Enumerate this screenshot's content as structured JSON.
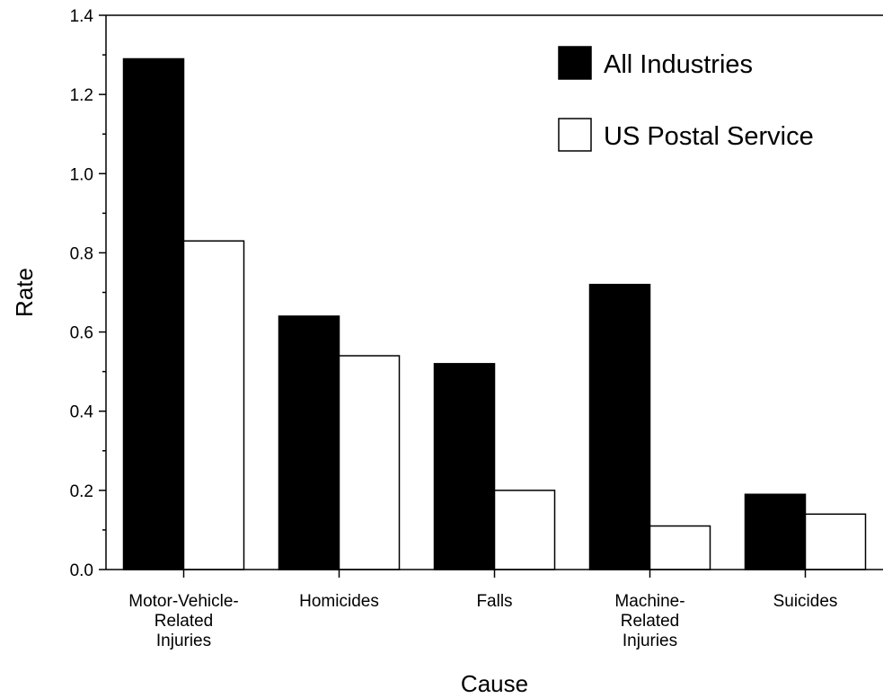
{
  "chart_data": {
    "type": "bar",
    "xlabel": "Cause",
    "ylabel": "Rate",
    "ylim": [
      0,
      1.4
    ],
    "yticks": [
      "0.0",
      "0.2",
      "0.4",
      "0.6",
      "0.8",
      "1.0",
      "1.2",
      "1.4"
    ],
    "categories": [
      [
        "Motor-Vehicle-",
        "Related",
        "Injuries"
      ],
      [
        "Homicides"
      ],
      [
        "Falls"
      ],
      [
        "Machine-",
        "Related",
        "Injuries"
      ],
      [
        "Suicides"
      ]
    ],
    "series": [
      {
        "name": "All Industries",
        "values": [
          1.29,
          0.64,
          0.52,
          0.72,
          0.19
        ],
        "color": "#000000"
      },
      {
        "name": "US Postal Service",
        "values": [
          0.83,
          0.54,
          0.2,
          0.11,
          0.14
        ],
        "color": "#ffffff"
      }
    ],
    "legend": "top-right",
    "grid": false
  }
}
